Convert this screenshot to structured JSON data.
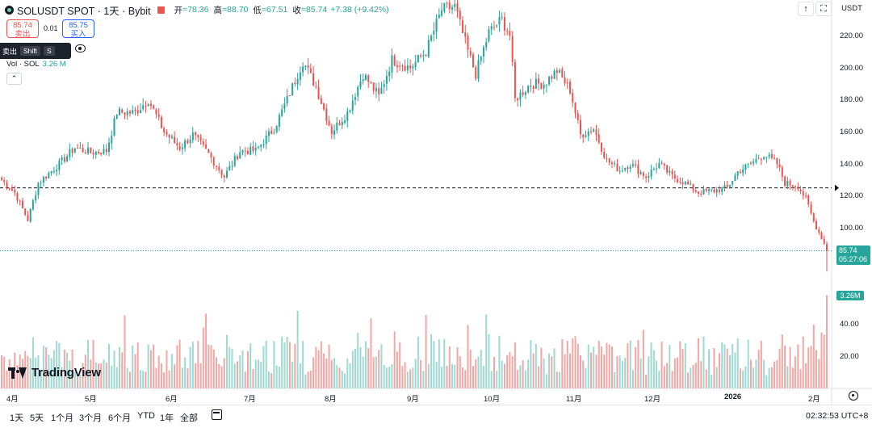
{
  "header": {
    "title": "SOLUSDT SPOT · 1天 · Bybit",
    "open_label": "开",
    "open_value": "=78.36",
    "high_label": "高",
    "high_value": "=88.70",
    "low_label": "低",
    "low_value": "=67.51",
    "close_label": "收",
    "close_value": "=85.74",
    "change": "+7.38 (+9.42%)",
    "market_status_color": "#ef5350"
  },
  "trade": {
    "sell_price": "85.74",
    "sell_label": "卖出",
    "spread": "0.01",
    "buy_price": "85.75",
    "buy_label": "买入"
  },
  "tooltip": {
    "text": "卖出",
    "key1": "Shift",
    "key2": "S"
  },
  "volume_legend": {
    "label": "Vol · SOL",
    "value": "3.26 M"
  },
  "collapse_icon": "chevron-up-icon",
  "top_right": {
    "currency": "USDT",
    "arrow_icon": "arrow-up-icon",
    "fullscreen_icon": "fullscreen-icon"
  },
  "price_axis": {
    "ticks": [
      "220.00",
      "200.00",
      "180.00",
      "160.00",
      "140.00",
      "120.00",
      "100.00"
    ]
  },
  "volume_axis": {
    "ticks": [
      "40.00",
      "20.00"
    ]
  },
  "last_price": {
    "price": "85.74",
    "countdown": "05:27:06",
    "color": "#26a69a"
  },
  "last_volume": "3.26M",
  "time_axis": {
    "labels": [
      "4月",
      "5月",
      "6月",
      "7月",
      "8月",
      "9月",
      "10月",
      "11月",
      "12月",
      "2026",
      "2月"
    ],
    "bold_label": "2026"
  },
  "ranges": [
    "1天",
    "5天",
    "1个月",
    "3个月",
    "6个月",
    "YTD",
    "1年",
    "全部"
  ],
  "clock": "02:32:53 UTC+8",
  "logo_text": "TradingView",
  "colors": {
    "up": "#26a69a",
    "down": "#ef5350",
    "vol_up": "#9fd9d2",
    "vol_down": "#f3a7a5",
    "reference_line": "#131722"
  },
  "chart_data": {
    "type": "candlestick",
    "title": "SOLUSDT SPOT · 1天 · Bybit",
    "x_labels": [
      "4月",
      "5月",
      "6月",
      "7月",
      "8月",
      "9月",
      "10月",
      "11月",
      "12月",
      "2026",
      "2月"
    ],
    "ylim": [
      65,
      240
    ],
    "reference_price": 125,
    "last_price": 85.74,
    "price_path": [
      {
        "date": "2025-03-29",
        "close": 130
      },
      {
        "date": "2025-04-03",
        "close": 122
      },
      {
        "date": "2025-04-08",
        "close": 105
      },
      {
        "date": "2025-04-12",
        "close": 128
      },
      {
        "date": "2025-04-20",
        "close": 140
      },
      {
        "date": "2025-04-26",
        "close": 150
      },
      {
        "date": "2025-05-02",
        "close": 147
      },
      {
        "date": "2025-05-08",
        "close": 148
      },
      {
        "date": "2025-05-12",
        "close": 172
      },
      {
        "date": "2025-05-19",
        "close": 172
      },
      {
        "date": "2025-05-24",
        "close": 180
      },
      {
        "date": "2025-05-30",
        "close": 160
      },
      {
        "date": "2025-06-05",
        "close": 150
      },
      {
        "date": "2025-06-10",
        "close": 158
      },
      {
        "date": "2025-06-16",
        "close": 146
      },
      {
        "date": "2025-06-22",
        "close": 132
      },
      {
        "date": "2025-06-28",
        "close": 148
      },
      {
        "date": "2025-07-04",
        "close": 148
      },
      {
        "date": "2025-07-11",
        "close": 162
      },
      {
        "date": "2025-07-16",
        "close": 180
      },
      {
        "date": "2025-07-22",
        "close": 204
      },
      {
        "date": "2025-07-27",
        "close": 188
      },
      {
        "date": "2025-08-02",
        "close": 160
      },
      {
        "date": "2025-08-08",
        "close": 172
      },
      {
        "date": "2025-08-14",
        "close": 196
      },
      {
        "date": "2025-08-20",
        "close": 182
      },
      {
        "date": "2025-08-25",
        "close": 205
      },
      {
        "date": "2025-09-01",
        "close": 200
      },
      {
        "date": "2025-09-07",
        "close": 210
      },
      {
        "date": "2025-09-13",
        "close": 236
      },
      {
        "date": "2025-09-18",
        "close": 238
      },
      {
        "date": "2025-09-23",
        "close": 210
      },
      {
        "date": "2025-09-26",
        "close": 196
      },
      {
        "date": "2025-10-01",
        "close": 222
      },
      {
        "date": "2025-10-06",
        "close": 230
      },
      {
        "date": "2025-10-09",
        "close": 220
      },
      {
        "date": "2025-10-11",
        "close": 180
      },
      {
        "date": "2025-10-17",
        "close": 190
      },
      {
        "date": "2025-10-22",
        "close": 190
      },
      {
        "date": "2025-10-27",
        "close": 198
      },
      {
        "date": "2025-11-01",
        "close": 186
      },
      {
        "date": "2025-11-05",
        "close": 158
      },
      {
        "date": "2025-11-10",
        "close": 162
      },
      {
        "date": "2025-11-15",
        "close": 142
      },
      {
        "date": "2025-11-20",
        "close": 136
      },
      {
        "date": "2025-11-24",
        "close": 140
      },
      {
        "date": "2025-11-30",
        "close": 132
      },
      {
        "date": "2025-12-05",
        "close": 140
      },
      {
        "date": "2025-12-10",
        "close": 132
      },
      {
        "date": "2025-12-15",
        "close": 128
      },
      {
        "date": "2025-12-20",
        "close": 122
      },
      {
        "date": "2025-12-25",
        "close": 123
      },
      {
        "date": "2025-12-31",
        "close": 125
      },
      {
        "date": "2026-01-04",
        "close": 135
      },
      {
        "date": "2026-01-09",
        "close": 140
      },
      {
        "date": "2026-01-14",
        "close": 146
      },
      {
        "date": "2026-01-19",
        "close": 140
      },
      {
        "date": "2026-01-22",
        "close": 128
      },
      {
        "date": "2026-01-27",
        "close": 126
      },
      {
        "date": "2026-01-30",
        "close": 118
      },
      {
        "date": "2026-02-02",
        "close": 104
      },
      {
        "date": "2026-02-05",
        "close": 94
      },
      {
        "date": "2026-02-07",
        "close": 85.74
      }
    ],
    "volume_ylim": [
      0,
      60
    ]
  }
}
